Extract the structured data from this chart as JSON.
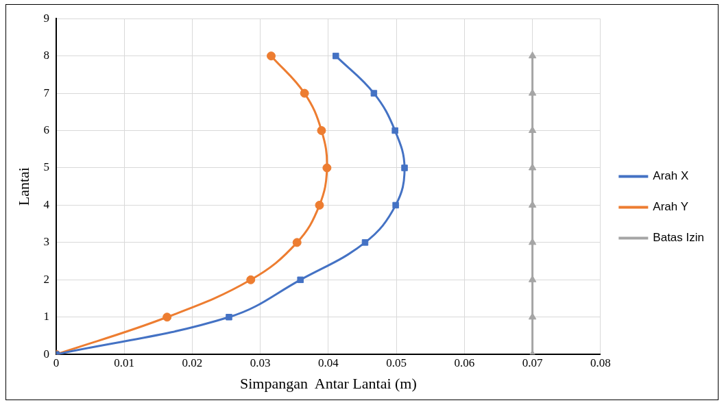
{
  "chart_data": {
    "type": "line",
    "xlabel": "Simpangan  Antar Lantai (m)",
    "ylabel": "Lantai",
    "series": [
      {
        "name": "Arah X",
        "color": "#4472c4",
        "marker": "square",
        "x": [
          0,
          0.0254,
          0.0359,
          0.0454,
          0.0499,
          0.0512,
          0.0498,
          0.0467,
          0.0411
        ],
        "values": [
          0,
          1,
          2,
          3,
          4,
          5,
          6,
          7,
          8
        ]
      },
      {
        "name": "Arah Y",
        "color": "#ed7d31",
        "marker": "circle",
        "x": [
          0,
          0.0163,
          0.0286,
          0.0354,
          0.0387,
          0.0398,
          0.039,
          0.0365,
          0.0316
        ],
        "values": [
          0,
          1,
          2,
          3,
          4,
          5,
          6,
          7,
          8
        ]
      },
      {
        "name": "Batas Izin",
        "color": "#a5a5a5",
        "marker": "triangle",
        "x": [
          0.07,
          0.07,
          0.07,
          0.07,
          0.07,
          0.07,
          0.07,
          0.07,
          0.07
        ],
        "values": [
          0,
          1,
          2,
          3,
          4,
          5,
          6,
          7,
          8
        ]
      }
    ],
    "xlim": [
      0,
      0.08
    ],
    "xticks": [
      0,
      0.01,
      0.02,
      0.03,
      0.04,
      0.05,
      0.06,
      0.07,
      0.08
    ],
    "ylim": [
      0,
      9
    ],
    "yticks": [
      0,
      1,
      2,
      3,
      4,
      5,
      6,
      7,
      8,
      9
    ],
    "grid": true,
    "legend": "right"
  }
}
